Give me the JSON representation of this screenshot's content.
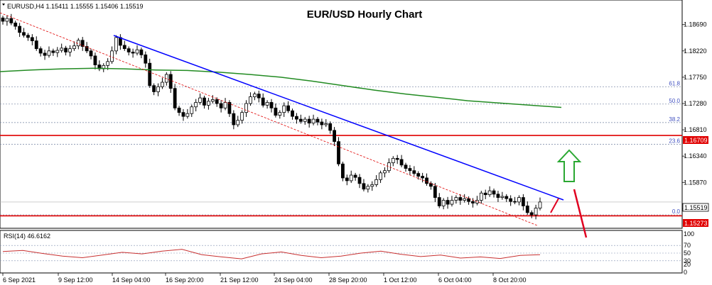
{
  "header": {
    "symbol_line": "EURUSD,H4  1.15411 1.15555 1.15406 1.15519",
    "title": "EUR/USD Hourly Chart"
  },
  "chart_data": {
    "type": "candlestick",
    "title": "EUR/USD Hourly Chart",
    "symbol": "EURUSD",
    "timeframe": "H4",
    "ohlc_header": {
      "open": 1.15411,
      "high": 1.15555,
      "low": 1.15406,
      "close": 1.15519
    },
    "ylim": [
      1.1505,
      1.1913
    ],
    "y_ticks": [
      "1.18690",
      "1.18220",
      "1.17750",
      "1.17280",
      "1.16810",
      "1.16340",
      "1.15870",
      "1.15400"
    ],
    "x_ticks": [
      "6 Sep 2021",
      "9 Sep 12:00",
      "14 Sep 04:00",
      "16 Sep 20:00",
      "21 Sep 12:00",
      "24 Sep 04:00",
      "28 Sep 20:00",
      "1 Oct 12:00",
      "6 Oct 04:00",
      "8 Oct 20:00"
    ],
    "closes": [
      1.1875,
      1.188,
      1.1872,
      1.1866,
      1.1855,
      1.185,
      1.1846,
      1.184,
      1.1826,
      1.1818,
      1.1814,
      1.1822,
      1.1819,
      1.1823,
      1.1827,
      1.182,
      1.1826,
      1.1831,
      1.1841,
      1.183,
      1.1822,
      1.1813,
      1.1797,
      1.179,
      1.1796,
      1.1803,
      1.1822,
      1.1846,
      1.1832,
      1.1826,
      1.182,
      1.1818,
      1.1824,
      1.1815,
      1.18,
      1.176,
      1.1749,
      1.1758,
      1.1766,
      1.178,
      1.1755,
      1.172,
      1.1712,
      1.1705,
      1.171,
      1.1722,
      1.173,
      1.1738,
      1.1725,
      1.1732,
      1.1735,
      1.1728,
      1.172,
      1.173,
      1.171,
      1.169,
      1.1698,
      1.1712,
      1.1728,
      1.174,
      1.1745,
      1.1738,
      1.1725,
      1.173,
      1.172,
      1.1707,
      1.1712,
      1.1724,
      1.1715,
      1.1705,
      1.17,
      1.1696,
      1.17,
      1.1693,
      1.17,
      1.1695,
      1.169,
      1.1692,
      1.168,
      1.166,
      1.162,
      1.1595,
      1.159,
      1.16,
      1.1596,
      1.1585,
      1.1575,
      1.158,
      1.1583,
      1.1592,
      1.1604,
      1.1608,
      1.1622,
      1.163,
      1.1628,
      1.1618,
      1.1612,
      1.1608,
      1.1603,
      1.1598,
      1.1595,
      1.1585,
      1.158,
      1.156,
      1.1545,
      1.1555,
      1.1548,
      1.1555,
      1.156,
      1.1555,
      1.1558,
      1.1553,
      1.155,
      1.1555,
      1.1568,
      1.1565,
      1.1572,
      1.1566,
      1.156,
      1.1562,
      1.1558,
      1.1553,
      1.1552,
      1.156,
      1.1545,
      1.1533,
      1.1529,
      1.1541,
      1.1552
    ],
    "ma_200": [
      1.1785,
      1.1788,
      1.179,
      1.1791,
      1.179,
      1.1788,
      1.1787,
      1.1784,
      1.178,
      1.1775,
      1.1768,
      1.176,
      1.1752,
      1.1745,
      1.1739,
      1.1733,
      1.1729,
      1.1725,
      1.1721
    ],
    "rsi": {
      "label": "RSI(14) 46.6162",
      "period": 14,
      "last": 46.6162,
      "levels": [
        70,
        50,
        30
      ],
      "y_ticks": [
        "100",
        "70",
        "50",
        "30",
        "20",
        "0"
      ],
      "values": [
        54,
        57,
        49,
        42,
        38,
        45,
        52,
        48,
        55,
        60,
        46,
        40,
        35,
        48,
        53,
        44,
        38,
        42,
        50,
        55,
        47,
        41,
        45,
        37,
        40,
        36,
        44,
        46
      ]
    },
    "fib_levels": [
      {
        "label": "61.8",
        "price": 1.1758
      },
      {
        "label": "50.0",
        "price": 1.1727
      },
      {
        "label": "38.2",
        "price": 1.1694
      },
      {
        "label": "23.6",
        "price": 1.1655
      },
      {
        "label": "0.0",
        "price": 1.1529
      }
    ],
    "horizontal_lines": [
      {
        "label": "1.16709",
        "price": 1.16709,
        "color": "#e00000"
      },
      {
        "label": "1.15273",
        "price": 1.15273,
        "color": "#e00000"
      }
    ],
    "current_price": {
      "label": "1.15519",
      "price": 1.15519
    }
  },
  "colors": {
    "bull": "#ffffff",
    "bear": "#000000",
    "trendline": "#0000ff",
    "ma": "#228b22",
    "support_resistance": "#e00000",
    "fib": "#4050c0",
    "arrow_up": "#2aa832",
    "arrow_down": "#e00020",
    "rsi": "#c83030"
  }
}
